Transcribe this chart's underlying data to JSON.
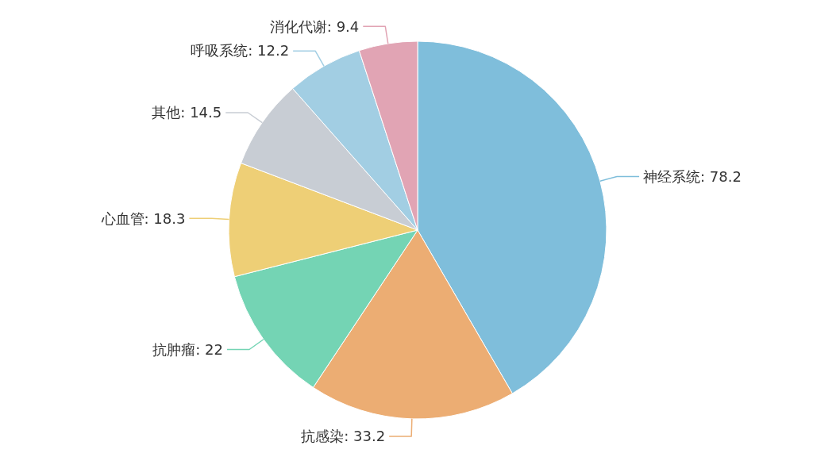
{
  "chart_data": {
    "type": "pie",
    "categories": [
      "神经系统",
      "抗感染",
      "抗肿瘤",
      "心血管",
      "其他",
      "呼吸系统",
      "消化代谢"
    ],
    "values": [
      78.2,
      33.2,
      22,
      18.3,
      14.5,
      12.2,
      9.4
    ],
    "value_labels": [
      ": 78.2",
      ": 33.2",
      ": 22",
      ": 18.3",
      ": 14.5",
      ": 12.2",
      ": 9.4"
    ],
    "colors": [
      "#7fbedb",
      "#ecad73",
      "#74d4b4",
      "#eecf76",
      "#c8cdd4",
      "#a2cee3",
      "#e1a4b4"
    ]
  }
}
